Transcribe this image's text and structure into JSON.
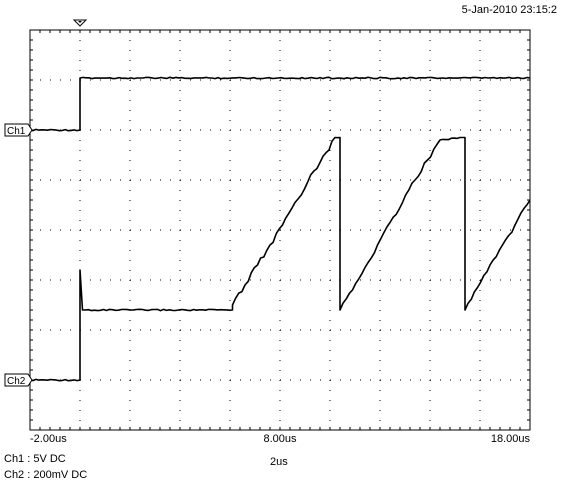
{
  "header": {
    "timestamp": "5-Jan-2010 23:15:2"
  },
  "markers": {
    "ch1": "Ch1",
    "ch2": "Ch2"
  },
  "axis": {
    "x_labels": [
      {
        "t": -2,
        "text": "-2.00us"
      },
      {
        "t": 8,
        "text": "8.00us"
      },
      {
        "t": 18,
        "text": "18.00us"
      }
    ]
  },
  "footer": {
    "ch1_setting": "Ch1 : 5V  DC",
    "ch2_setting": "Ch2 : 200mV  DC",
    "timebase": "2us"
  },
  "colors": {
    "trace": "#000000",
    "grid": "#000000",
    "background": "#ffffff"
  },
  "chart_data": {
    "type": "line",
    "x_range_us": [
      -2,
      18
    ],
    "divisions": {
      "x": 10,
      "y": 8
    },
    "trigger_time_us": 0,
    "series": [
      {
        "name": "Ch1",
        "volts_per_div": 5,
        "points": [
          [
            -2,
            0
          ],
          [
            0,
            0
          ],
          [
            0,
            5.2
          ],
          [
            18,
            5.2
          ]
        ]
      },
      {
        "name": "Ch2",
        "volts_per_div": 0.2,
        "points": [
          [
            -2,
            0
          ],
          [
            0,
            0
          ],
          [
            0,
            0.44
          ],
          [
            0.1,
            0.28
          ],
          [
            6.1,
            0.28
          ],
          [
            6.1,
            0.3
          ],
          [
            6.6,
            0.38
          ],
          [
            7.1,
            0.46
          ],
          [
            7.6,
            0.54
          ],
          [
            8.1,
            0.62
          ],
          [
            8.6,
            0.71
          ],
          [
            9.1,
            0.79
          ],
          [
            9.6,
            0.87
          ],
          [
            10.2,
            0.97
          ],
          [
            10.4,
            0.97
          ],
          [
            10.4,
            0.28
          ],
          [
            10.9,
            0.36
          ],
          [
            11.4,
            0.45
          ],
          [
            11.9,
            0.54
          ],
          [
            12.4,
            0.63
          ],
          [
            12.9,
            0.71
          ],
          [
            13.4,
            0.8
          ],
          [
            13.9,
            0.88
          ],
          [
            14.4,
            0.96
          ],
          [
            15.2,
            0.97
          ],
          [
            15.4,
            0.97
          ],
          [
            15.4,
            0.28
          ],
          [
            15.9,
            0.37
          ],
          [
            16.4,
            0.46
          ],
          [
            16.9,
            0.54
          ],
          [
            17.4,
            0.62
          ],
          [
            18,
            0.72
          ]
        ]
      }
    ]
  }
}
